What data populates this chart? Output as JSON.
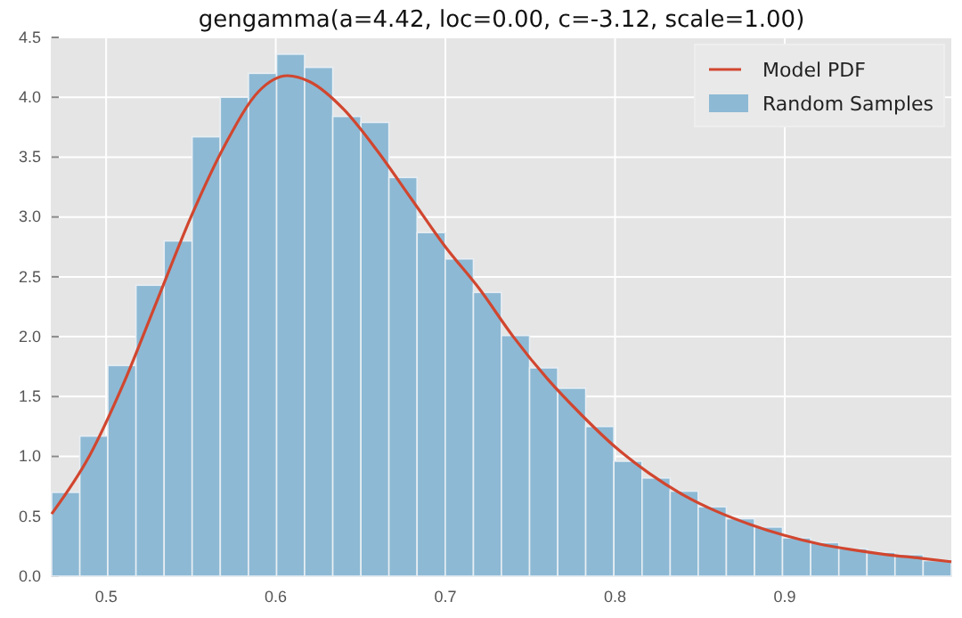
{
  "chart_data": {
    "type": "histogram",
    "title": "gengamma(a=4.42, loc=0.00, c=-3.12, scale=1.00)",
    "bins": [
      0.4679,
      0.4845,
      0.501,
      0.5176,
      0.5342,
      0.5507,
      0.5673,
      0.5839,
      0.6005,
      0.617,
      0.6336,
      0.6502,
      0.6667,
      0.6833,
      0.6999,
      0.7165,
      0.733,
      0.7496,
      0.7662,
      0.7827,
      0.7993,
      0.8159,
      0.8325,
      0.849,
      0.8656,
      0.8822,
      0.8987,
      0.9153,
      0.9319,
      0.9485,
      0.965,
      0.9816,
      0.9982
    ],
    "series": [
      {
        "name": "Model PDF",
        "type": "line",
        "color": "#d1462f",
        "x": [
          0.4679,
          0.49,
          0.51,
          0.53,
          0.55,
          0.57,
          0.59,
          0.607,
          0.62,
          0.64,
          0.66,
          0.68,
          0.7,
          0.72,
          0.74,
          0.76,
          0.78,
          0.8,
          0.82,
          0.84,
          0.86,
          0.88,
          0.9,
          0.92,
          0.94,
          0.96,
          0.98,
          0.9982
        ],
        "values": [
          0.52,
          1.0,
          1.6,
          2.3,
          3.0,
          3.6,
          4.05,
          4.18,
          4.13,
          3.9,
          3.55,
          3.15,
          2.75,
          2.4,
          2.0,
          1.65,
          1.35,
          1.08,
          0.86,
          0.68,
          0.54,
          0.43,
          0.34,
          0.27,
          0.22,
          0.18,
          0.15,
          0.12
        ]
      },
      {
        "name": "Random Samples",
        "color": "#8db9d4",
        "values": [
          0.7,
          1.17,
          1.76,
          2.43,
          2.8,
          3.67,
          4.0,
          4.2,
          4.36,
          4.25,
          3.84,
          3.79,
          3.33,
          2.87,
          2.65,
          2.37,
          2.01,
          1.74,
          1.57,
          1.25,
          0.96,
          0.82,
          0.71,
          0.58,
          0.48,
          0.41,
          0.32,
          0.28,
          0.23,
          0.2,
          0.18,
          0.13
        ]
      }
    ],
    "xlim": [
      0.4679,
      0.9982
    ],
    "xticks": [
      0.5,
      0.6,
      0.7,
      0.8,
      0.9
    ],
    "ylim": [
      0,
      4.5
    ],
    "yticks": [
      {
        "value": 0,
        "label": "0.0"
      },
      {
        "value": 0.5,
        "label": "0.5"
      },
      {
        "value": 1,
        "label": "1.0"
      },
      {
        "value": 1.5,
        "label": "1.5"
      },
      {
        "value": 2,
        "label": "2.0"
      },
      {
        "value": 2.5,
        "label": "2.5"
      },
      {
        "value": 3,
        "label": "3.0"
      },
      {
        "value": 3.5,
        "label": "3.5"
      },
      {
        "value": 4,
        "label": "4.0"
      },
      {
        "value": 4.5,
        "label": "4.5"
      }
    ],
    "grid": true,
    "legend": "top right",
    "marker": "none",
    "line_style": "solid"
  }
}
